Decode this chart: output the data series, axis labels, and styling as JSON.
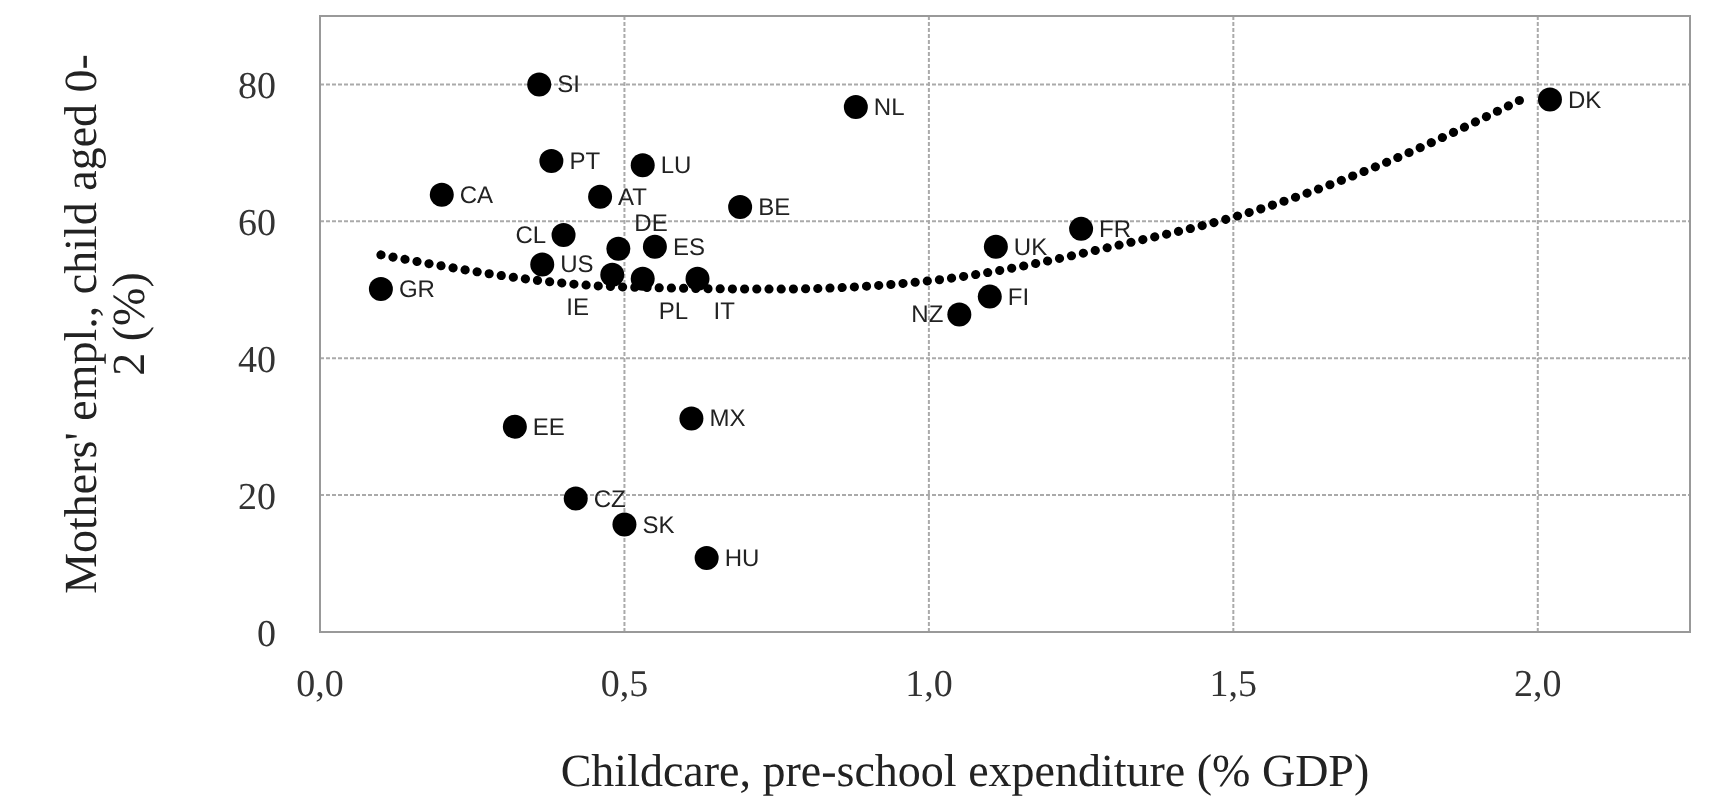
{
  "chart_data": {
    "type": "scatter",
    "xlabel": "Childcare, pre-school expenditure (% GDP)",
    "ylabel": "Mothers' empl., child aged 0-2 (%)",
    "xlim": [
      0,
      2.25
    ],
    "ylim": [
      0,
      90
    ],
    "xticks": [
      {
        "value": 0,
        "label": "0,0"
      },
      {
        "value": 0.5,
        "label": "0,5"
      },
      {
        "value": 1,
        "label": "1,0"
      },
      {
        "value": 1.5,
        "label": "1,5"
      },
      {
        "value": 2,
        "label": "2,0"
      }
    ],
    "yticks": [
      0,
      20,
      40,
      60,
      80
    ],
    "grid": true,
    "marker": "circle",
    "series": [
      {
        "color": "#000000",
        "x": [
          0.36,
          0.88,
          0.38,
          0.53,
          0.2,
          0.46,
          0.69,
          0.4,
          0.49,
          0.55,
          0.365,
          0.48,
          0.53,
          0.62,
          0.1,
          1.05,
          1.1,
          1.11,
          1.25,
          2.02,
          0.32,
          0.61,
          0.42,
          0.5,
          0.635
        ],
        "values": [
          80,
          76.7,
          68.8,
          68.2,
          63.9,
          63.6,
          62.1,
          58,
          56,
          56.3,
          53.7,
          52.2,
          51.6,
          51.6,
          50.1,
          46.4,
          49,
          56.3,
          58.9,
          77.8,
          30,
          31.2,
          19.5,
          15.7,
          10.8
        ]
      },
      {
        "type": "line",
        "color": "#000000",
        "marker": "none",
        "line_style": "dotted",
        "x": [
          0.1,
          0.5,
          0.75,
          1,
          1.34,
          1.5,
          1.74,
          1.98
        ],
        "values": [
          55.1,
          50.4,
          50.1,
          51.3,
          57.1,
          60.6,
          68.2,
          78.1
        ]
      }
    ],
    "annotations": [
      {
        "text": "SI",
        "x": 0.36,
        "y": 80
      },
      {
        "text": "NL",
        "x": 0.88,
        "y": 76.7
      },
      {
        "text": "PT",
        "x": 0.38,
        "y": 68.8
      },
      {
        "text": "LU",
        "x": 0.53,
        "y": 68.2
      },
      {
        "text": "CA",
        "x": 0.2,
        "y": 63.9
      },
      {
        "text": "AT",
        "x": 0.46,
        "y": 63.6
      },
      {
        "text": "BE",
        "x": 0.69,
        "y": 62.1
      },
      {
        "text": "CL",
        "x": 0.4,
        "y": 58
      },
      {
        "text": "DE",
        "x": 0.49,
        "y": 56
      },
      {
        "text": "ES",
        "x": 0.55,
        "y": 56.3
      },
      {
        "text": "US",
        "x": 0.365,
        "y": 53.7
      },
      {
        "text": "IE",
        "x": 0.48,
        "y": 52.2
      },
      {
        "text": "PL",
        "x": 0.53,
        "y": 51.6
      },
      {
        "text": "IT",
        "x": 0.62,
        "y": 51.6
      },
      {
        "text": "GR",
        "x": 0.1,
        "y": 50.1
      },
      {
        "text": "NZ",
        "x": 1.05,
        "y": 46.4
      },
      {
        "text": "FI",
        "x": 1.1,
        "y": 49
      },
      {
        "text": "UK",
        "x": 1.11,
        "y": 56.3
      },
      {
        "text": "FR",
        "x": 1.25,
        "y": 58.9
      },
      {
        "text": "DK",
        "x": 2.02,
        "y": 77.8
      },
      {
        "text": "EE",
        "x": 0.32,
        "y": 30
      },
      {
        "text": "MX",
        "x": 0.61,
        "y": 31.2
      },
      {
        "text": "CZ",
        "x": 0.42,
        "y": 19.5
      },
      {
        "text": "SK",
        "x": 0.5,
        "y": 15.7
      },
      {
        "text": "HU",
        "x": 0.635,
        "y": 10.8
      }
    ]
  }
}
